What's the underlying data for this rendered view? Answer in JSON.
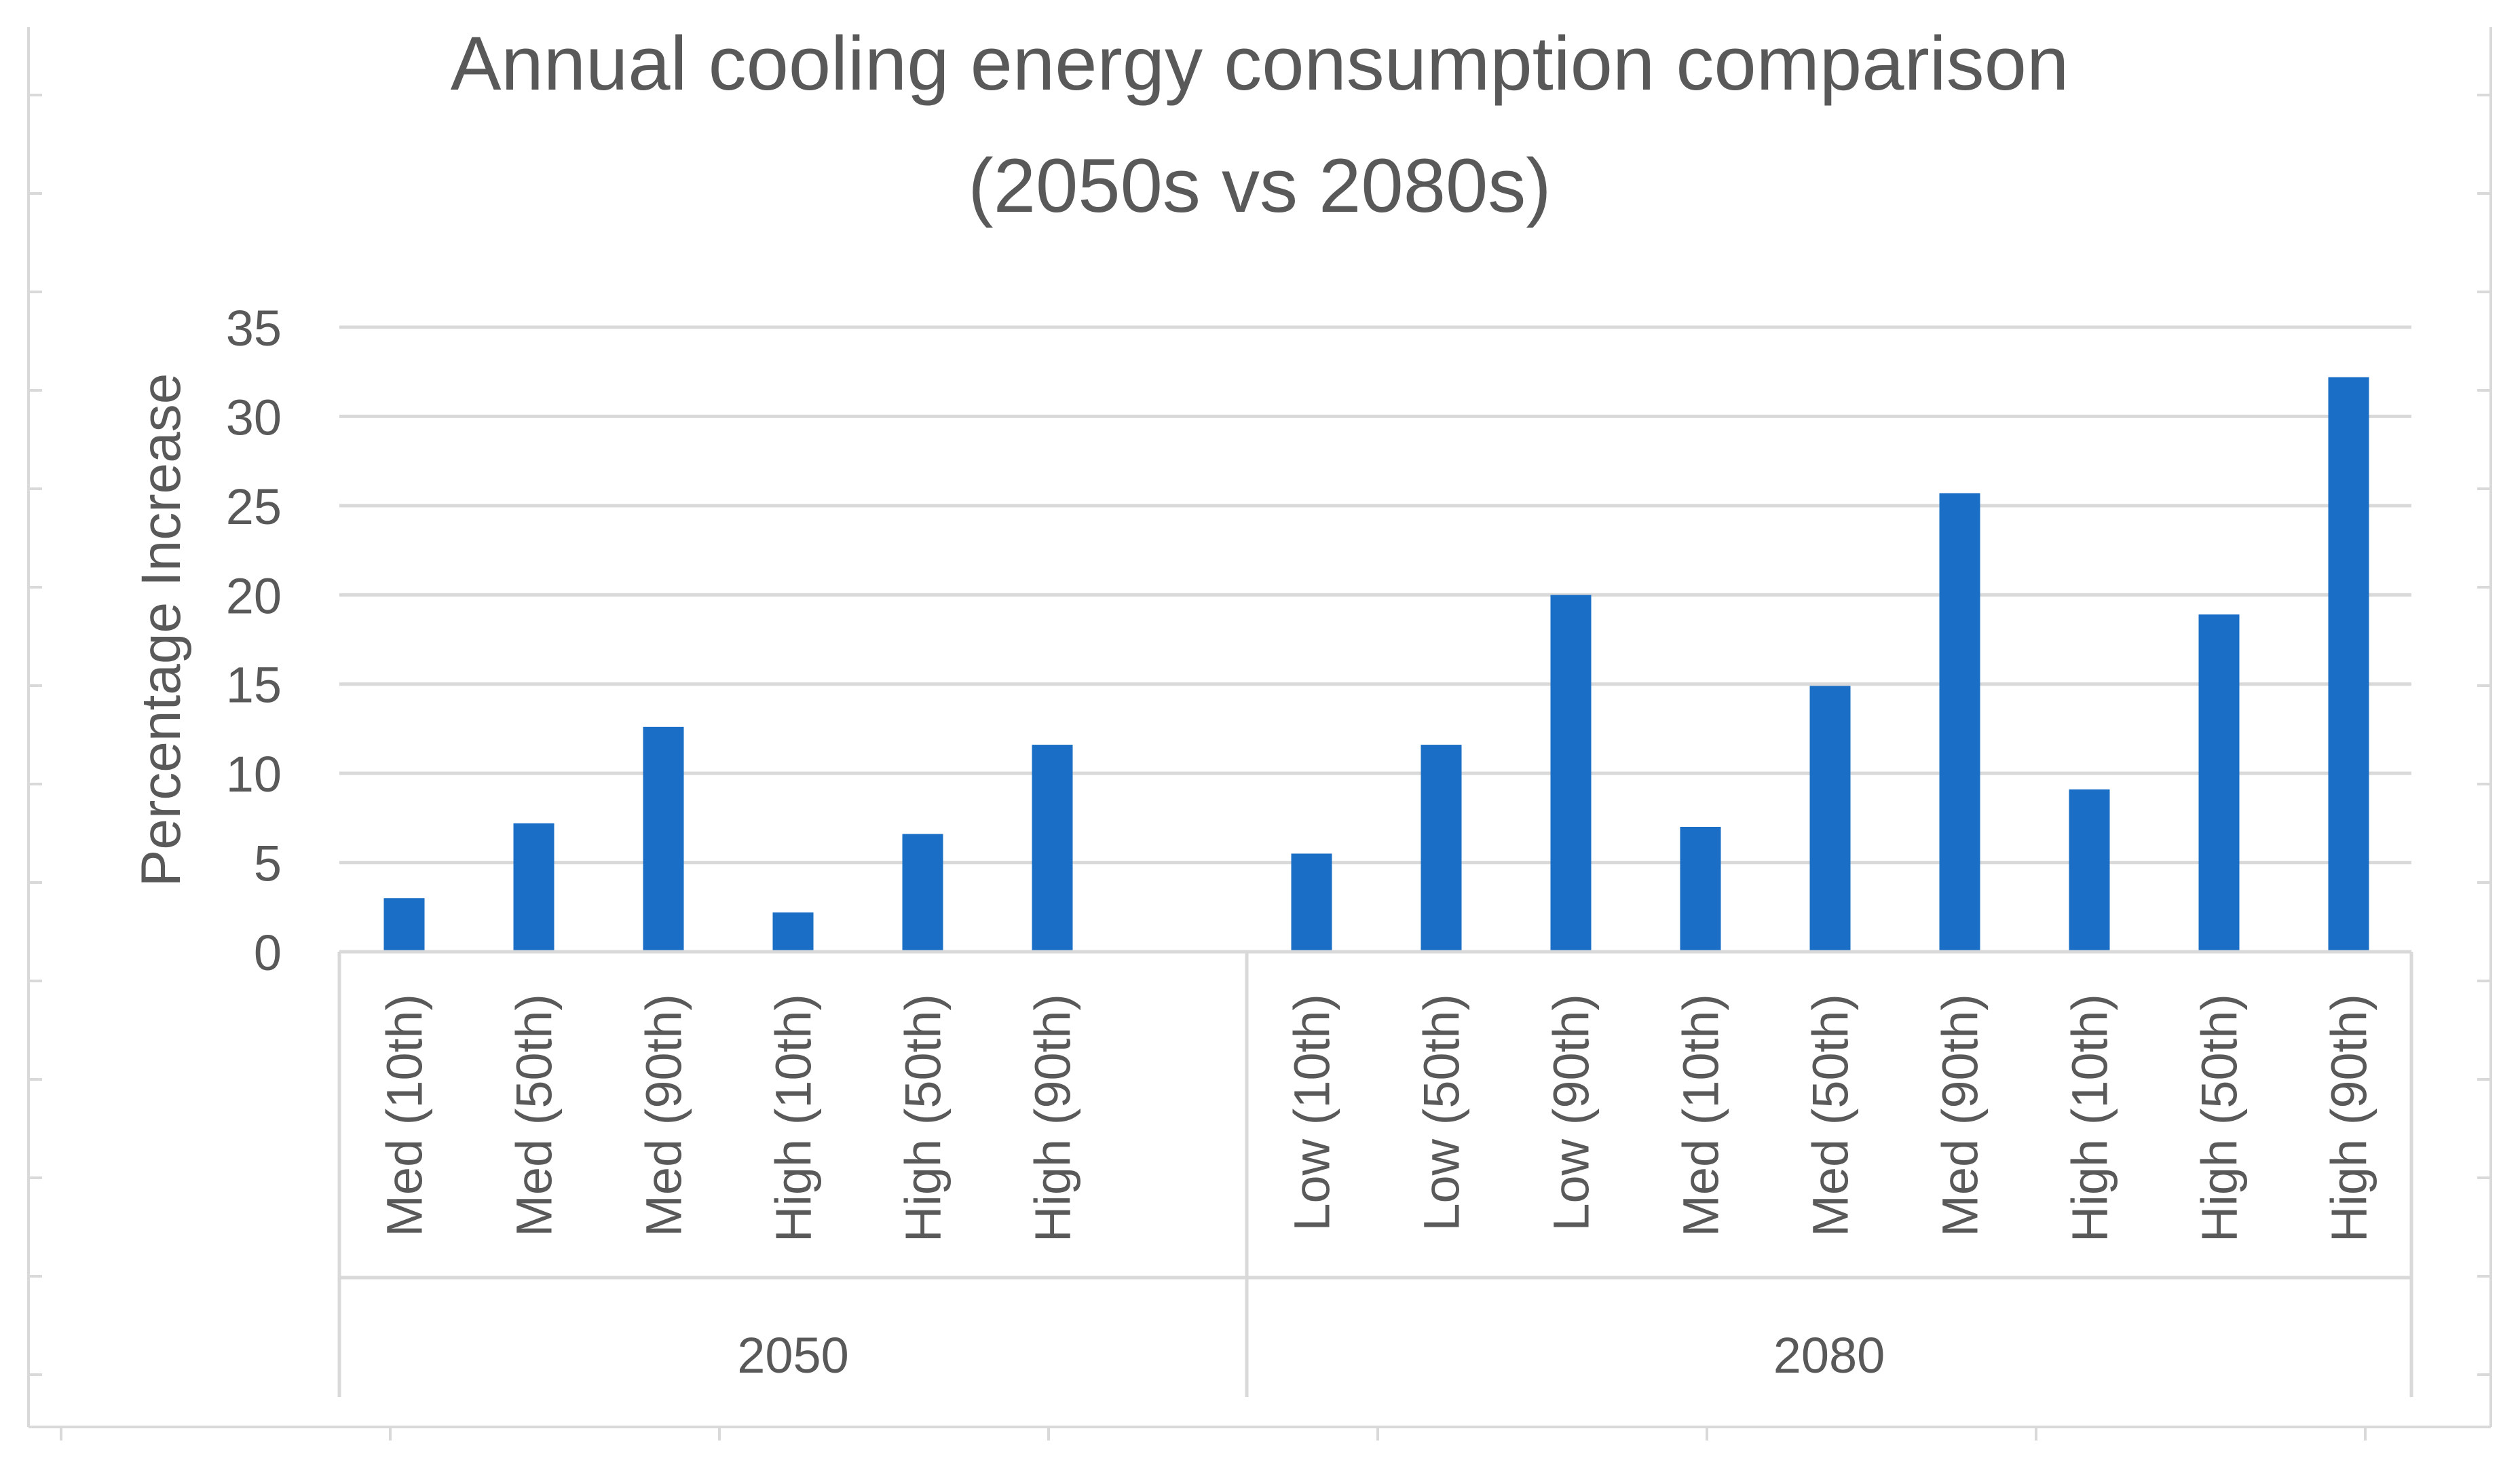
{
  "chart_data": {
    "type": "bar",
    "title_lines": [
      "Annual cooling energy consumption comparison",
      "(2050s vs 2080s)"
    ],
    "xlabel": "",
    "ylabel": "Percentage Increase",
    "ylim": [
      0,
      35
    ],
    "yticks": [
      "0",
      "5",
      "10",
      "15",
      "20",
      "25",
      "30",
      "35"
    ],
    "grid": true,
    "legend": "none",
    "bar_color": "#1a6ec6",
    "groups": [
      {
        "label": "2050",
        "categories": [
          "Med (10th)",
          "Med (50th)",
          "Med (90th)",
          "High (10th)",
          "High (50th)",
          "High (90th)"
        ],
        "values": [
          3,
          7.2,
          12.6,
          2.2,
          6.6,
          11.6
        ]
      },
      {
        "label": "2080",
        "categories": [
          "Low (10th)",
          "Low (50th)",
          "Low (90th)",
          "Med (10th)",
          "Med (50th)",
          "Med (90th)",
          "High (10th)",
          "High (50th)",
          "High (90th)"
        ],
        "values": [
          5.5,
          11.6,
          20,
          7,
          14.9,
          25.7,
          9.1,
          18.9,
          32.2
        ]
      }
    ]
  }
}
